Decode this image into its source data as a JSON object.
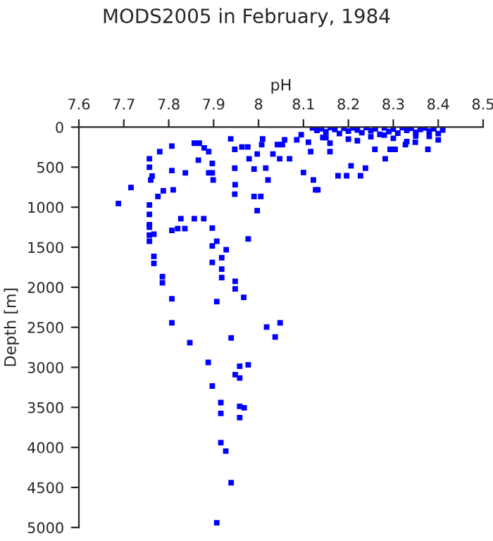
{
  "chart_data": {
    "type": "scatter",
    "title": "MODS2005 in February, 1984",
    "xlabel": "pH",
    "ylabel": "Depth [m]",
    "series": [
      {
        "color": "#0000ff",
        "x": [
          7.688,
          7.716,
          7.757,
          7.757,
          7.76,
          7.763,
          7.757,
          7.757,
          7.757,
          7.78,
          7.807,
          7.776,
          7.788,
          7.81,
          7.807,
          7.837,
          7.866,
          7.857,
          7.868,
          7.879,
          7.889,
          7.897,
          7.897,
          7.899,
          7.889,
          7.938,
          7.947,
          7.947,
          7.948,
          7.947,
          7.963,
          7.976,
          7.979,
          7.99,
          7.99,
          8.005,
          7.997,
          8.009,
          8.007,
          7.997,
          8.016,
          8.021,
          8.032,
          8.042,
          8.047,
          8.053,
          8.058,
          8.069,
          8.085,
          8.095,
          8.1,
          8.111,
          8.116,
          8.122,
          8.127,
          8.132,
          8.143,
          8.159,
          8.159,
          8.177,
          8.196,
          8.206,
          8.227,
          8.238,
          8.259,
          8.282,
          8.293,
          8.304,
          8.327,
          8.349,
          8.377,
          8.12,
          8.13,
          8.14,
          8.15,
          8.16,
          8.17,
          8.18,
          8.19,
          8.2,
          8.21,
          8.22,
          8.23,
          8.24,
          8.25,
          8.26,
          8.27,
          8.28,
          8.29,
          8.3,
          8.31,
          8.32,
          8.33,
          8.34,
          8.35,
          8.36,
          8.37,
          8.38,
          8.39,
          8.4,
          8.41,
          8.15,
          8.2,
          8.25,
          8.3,
          8.35,
          8.4,
          8.22,
          8.28,
          8.33,
          8.38,
          7.757,
          7.757,
          7.767,
          7.757,
          7.767,
          7.767,
          7.786,
          7.786,
          7.807,
          7.82,
          7.836,
          7.807,
          7.807,
          7.827,
          7.857,
          7.878,
          7.897,
          7.897,
          7.907,
          7.897,
          7.918,
          7.928,
          7.918,
          7.918,
          7.907,
          7.948,
          7.948,
          7.967,
          7.977,
          7.847,
          7.939,
          8.018,
          8.048,
          8.037,
          7.888,
          7.958,
          7.977,
          7.948,
          7.958,
          7.897,
          7.916,
          7.958,
          7.968,
          7.916,
          7.958,
          7.916,
          7.927,
          7.939,
          7.907
        ],
        "values": [
          954,
          754,
          395,
          500,
          660,
          612,
          972,
          1219,
          1349,
          306,
          236,
          866,
          795,
          783,
          542,
          571,
          412,
          200,
          200,
          259,
          306,
          453,
          571,
          660,
          571,
          147,
          277,
          513,
          719,
          837,
          248,
          248,
          395,
          524,
          866,
          866,
          1043,
          147,
          218,
          335,
          512,
          660,
          335,
          218,
          395,
          218,
          159,
          395,
          159,
          95,
          566,
          188,
          306,
          660,
          783,
          783,
          130,
          306,
          200,
          607,
          607,
          483,
          607,
          513,
          277,
          395,
          277,
          277,
          218,
          188,
          277,
          10,
          40,
          20,
          60,
          5,
          30,
          80,
          15,
          50,
          10,
          35,
          70,
          5,
          45,
          20,
          90,
          10,
          55,
          25,
          75,
          5,
          40,
          15,
          65,
          30,
          10,
          50,
          20,
          80,
          35,
          130,
          150,
          120,
          140,
          110,
          160,
          170,
          100,
          180,
          115,
          1090,
          1249,
          1337,
          1425,
          1614,
          1702,
          1867,
          1944,
          1290,
          1267,
          1267,
          2144,
          2444,
          1143,
          1143,
          1143,
          1261,
          1484,
          1425,
          1690,
          1631,
          1531,
          1773,
          1879,
          2179,
          1926,
          2020,
          2126,
          1396,
          2692,
          2633,
          2497,
          2444,
          2621,
          2939,
          2986,
          2968,
          3092,
          3133,
          3233,
          3440,
          3487,
          3505,
          3575,
          3628,
          3940,
          4046,
          4441,
          4941
        ]
      }
    ],
    "marker": "square",
    "grid": false,
    "legend": false,
    "xlim": [
      7.6,
      8.5
    ],
    "xticks": [
      7.6,
      7.7,
      7.8,
      7.9,
      8,
      8.1,
      8.2,
      8.3,
      8.4,
      8.5
    ],
    "ylim": [
      5000,
      0
    ],
    "yticks": [
      0,
      500,
      1000,
      1500,
      2000,
      2500,
      3000,
      3500,
      4000,
      4500,
      5000
    ]
  }
}
